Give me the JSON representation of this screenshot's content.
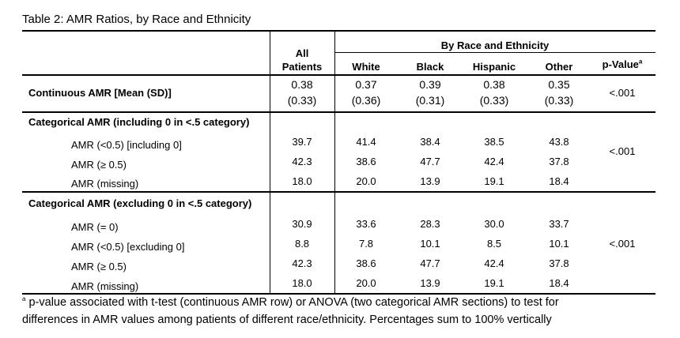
{
  "title": "Table 2: AMR Ratios, by Race and Ethnicity",
  "header": {
    "all_patients_line1": "All",
    "all_patients_line2": "Patients",
    "group_label": "By Race and Ethnicity",
    "columns": [
      "White",
      "Black",
      "Hispanic",
      "Other"
    ],
    "pvalue_label": "p-Value",
    "pvalue_sup": "a"
  },
  "continuous": {
    "label": "Continuous AMR [Mean (SD)]",
    "means": [
      "0.38",
      "0.37",
      "0.39",
      "0.38",
      "0.35"
    ],
    "sds": [
      "(0.33)",
      "(0.36)",
      "(0.31)",
      "(0.33)",
      "(0.33)"
    ],
    "pvalue": "<.001"
  },
  "section1": {
    "label": "Categorical AMR (including 0 in <.5 category)",
    "pvalue": "<.001",
    "rows": [
      {
        "label": "AMR (<0.5) [including 0]",
        "values": [
          "39.7",
          "41.4",
          "38.4",
          "38.5",
          "43.8"
        ]
      },
      {
        "label": "AMR (≥ 0.5)",
        "values": [
          "42.3",
          "38.6",
          "47.7",
          "42.4",
          "37.8"
        ]
      },
      {
        "label": "AMR (missing)",
        "values": [
          "18.0",
          "20.0",
          "13.9",
          "19.1",
          "18.4"
        ]
      }
    ]
  },
  "section2": {
    "label": "Categorical AMR (excluding 0 in <.5 category)",
    "pvalue": "<.001",
    "rows": [
      {
        "label": "AMR (= 0)",
        "values": [
          "30.9",
          "33.6",
          "28.3",
          "30.0",
          "33.7"
        ]
      },
      {
        "label": "AMR (<0.5) [excluding 0]",
        "values": [
          "8.8",
          "7.8",
          "10.1",
          "8.5",
          "10.1"
        ]
      },
      {
        "label": "AMR (≥ 0.5)",
        "values": [
          "42.3",
          "38.6",
          "47.7",
          "42.4",
          "37.8"
        ]
      },
      {
        "label": "AMR (missing)",
        "values": [
          "18.0",
          "20.0",
          "13.9",
          "19.1",
          "18.4"
        ]
      }
    ]
  },
  "footnote": {
    "marker": "a",
    "line1": " p-value associated with t-test (continuous AMR row) or ANOVA (two categorical AMR sections) to test for",
    "line2": "differences in AMR values among patients of different race/ethnicity. Percentages sum to 100% vertically"
  }
}
